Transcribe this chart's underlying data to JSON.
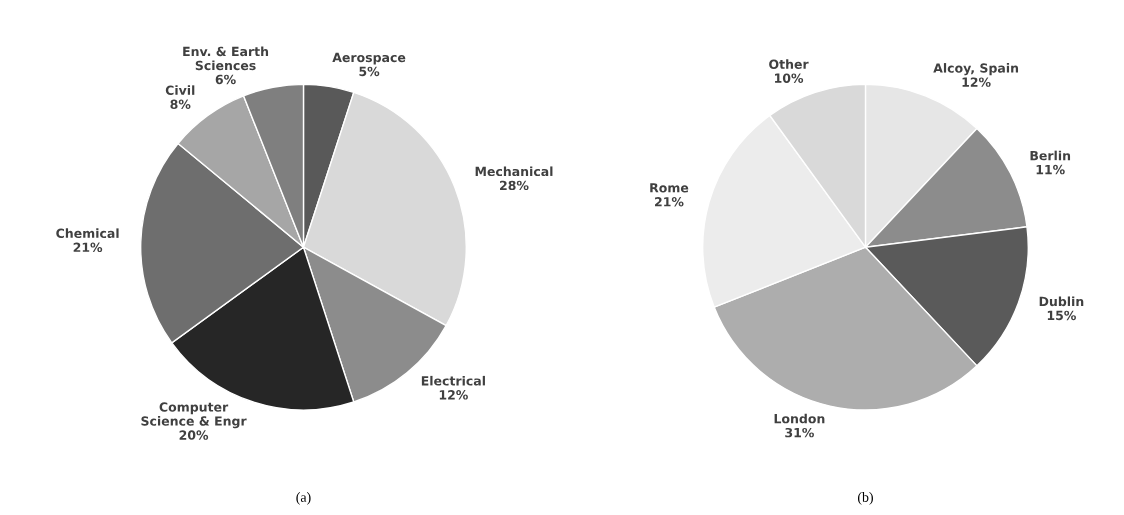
{
  "chart_data": [
    {
      "type": "pie",
      "categories": [
        "Aerospace",
        "Mechanical",
        "Electrical",
        "Computer\nScience & Engr",
        "Chemical",
        "Civil",
        "Env. & Earth\nSciences"
      ],
      "values": [
        5,
        28,
        12,
        20,
        21,
        8,
        6
      ],
      "colors": [
        "#595959",
        "#d9d9d9",
        "#8c8c8c",
        "#262626",
        "#6e6e6e",
        "#a6a6a6",
        "#7f7f7f"
      ],
      "value_labels": [
        "5%",
        "28%",
        "12%",
        "20%",
        "21%",
        "8%",
        "6%"
      ],
      "annotations": [
        "(a)"
      ]
    },
    {
      "type": "pie",
      "categories": [
        "Alcoy, Spain",
        "Berlin",
        "Dublin",
        "London",
        "Rome",
        "Other"
      ],
      "values": [
        12,
        11,
        15,
        31,
        21,
        10
      ],
      "colors": [
        "#e6e6e6",
        "#8c8c8c",
        "#5a5a5a",
        "#adadad",
        "#ececec",
        "#d9d9d9"
      ],
      "value_labels": [
        "12%",
        "11%",
        "15%",
        "31%",
        "21%",
        "10%"
      ],
      "annotations": [
        "(b)"
      ]
    }
  ]
}
